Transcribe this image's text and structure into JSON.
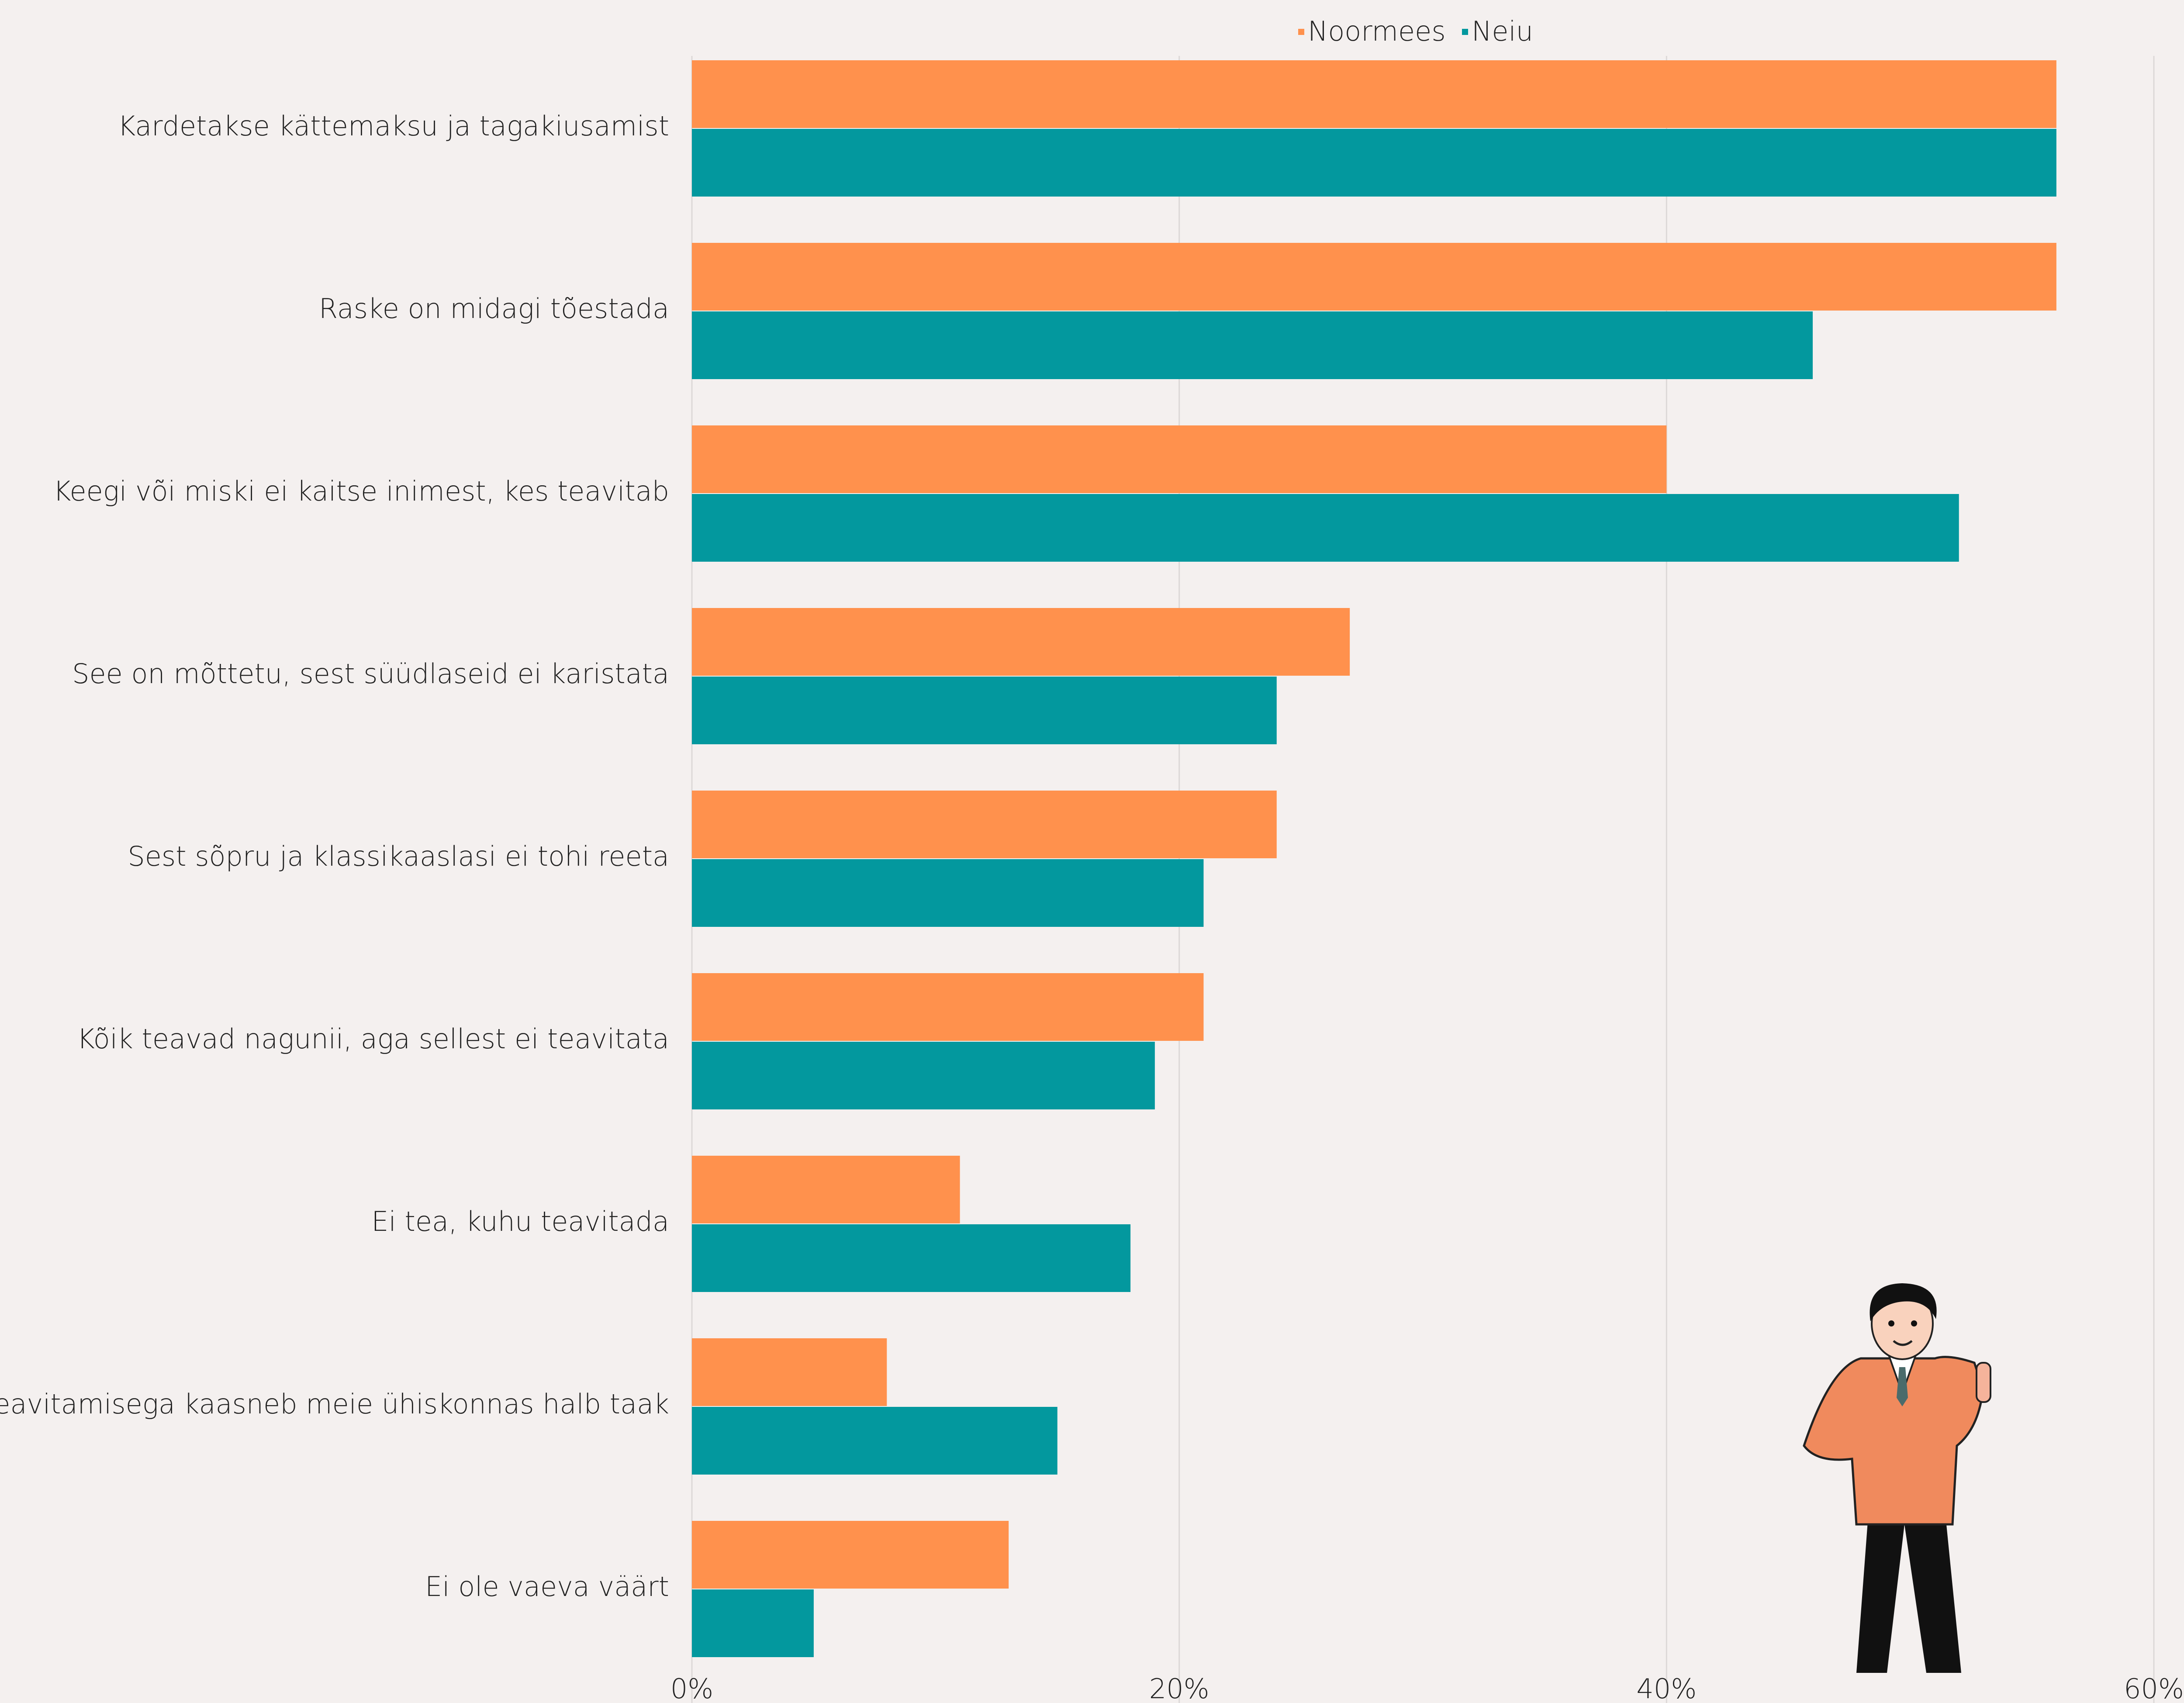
{
  "chart_data": {
    "type": "barh",
    "categories": [
      "Kardetakse kättemaksu ja tagakiusamist",
      "Raske on midagi tõestada",
      "Keegi või miski ei kaitse inimest, kes teavitab",
      "See on mõttetu, sest süüdlaseid ei karistata",
      "Sest sõpru ja klassikaaslasi ei tohi reeta",
      "Kõik teavad nagunii, aga sellest ei teavitata",
      "Ei tea, kuhu teavitada",
      "Teavitamisega kaasneb meie ühiskonnas halb taak",
      "Ei ole vaeva väärt"
    ],
    "series": [
      {
        "name": "Noormees",
        "color": "#ff914d",
        "values": [
          56,
          56,
          40,
          27,
          24,
          21,
          11,
          8,
          13
        ]
      },
      {
        "name": "Neiu",
        "color": "#03989e",
        "values": [
          56,
          46,
          52,
          24,
          21,
          19,
          18,
          15,
          5
        ]
      }
    ],
    "xlim": [
      0,
      60
    ],
    "xticks": [
      {
        "value": 0,
        "label": "0%"
      },
      {
        "value": 20,
        "label": "20%"
      },
      {
        "value": 40,
        "label": "40%"
      },
      {
        "value": 60,
        "label": "60%"
      }
    ],
    "grid": true,
    "legend": "top"
  }
}
